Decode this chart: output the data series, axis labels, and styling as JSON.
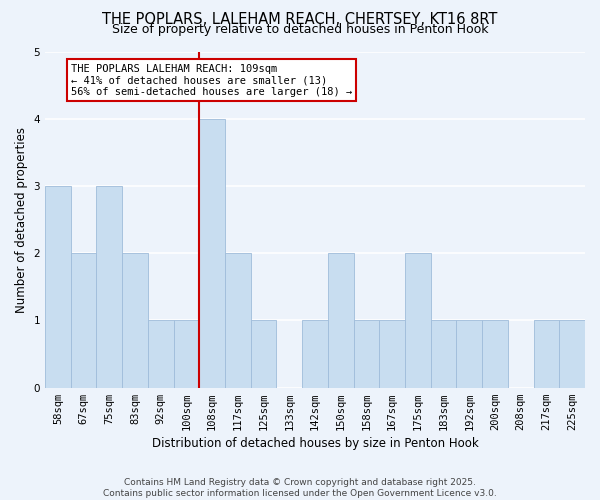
{
  "title": "THE POPLARS, LALEHAM REACH, CHERTSEY, KT16 8RT",
  "subtitle": "Size of property relative to detached houses in Penton Hook",
  "xlabel": "Distribution of detached houses by size in Penton Hook",
  "ylabel": "Number of detached properties",
  "bar_labels": [
    "58sqm",
    "67sqm",
    "75sqm",
    "83sqm",
    "92sqm",
    "100sqm",
    "108sqm",
    "117sqm",
    "125sqm",
    "133sqm",
    "142sqm",
    "150sqm",
    "158sqm",
    "167sqm",
    "175sqm",
    "183sqm",
    "192sqm",
    "200sqm",
    "208sqm",
    "217sqm",
    "225sqm"
  ],
  "bar_values": [
    3,
    2,
    3,
    2,
    1,
    1,
    4,
    2,
    1,
    0,
    1,
    2,
    1,
    1,
    2,
    1,
    1,
    1,
    0,
    1,
    1
  ],
  "bar_color": "#c8ddf0",
  "bar_edge_color": "#9fbcda",
  "subject_bar_index": 6,
  "subject_line_color": "#cc0000",
  "annotation_text": "THE POPLARS LALEHAM REACH: 109sqm\n← 41% of detached houses are smaller (13)\n56% of semi-detached houses are larger (18) →",
  "annotation_box_facecolor": "#ffffff",
  "annotation_box_edgecolor": "#cc0000",
  "ylim": [
    0,
    5
  ],
  "yticks": [
    0,
    1,
    2,
    3,
    4,
    5
  ],
  "footer_line1": "Contains HM Land Registry data © Crown copyright and database right 2025.",
  "footer_line2": "Contains public sector information licensed under the Open Government Licence v3.0.",
  "background_color": "#edf3fb",
  "grid_color": "#ffffff",
  "title_fontsize": 10.5,
  "subtitle_fontsize": 9,
  "axis_label_fontsize": 8.5,
  "tick_fontsize": 7.5,
  "annotation_fontsize": 7.5,
  "footer_fontsize": 6.5
}
